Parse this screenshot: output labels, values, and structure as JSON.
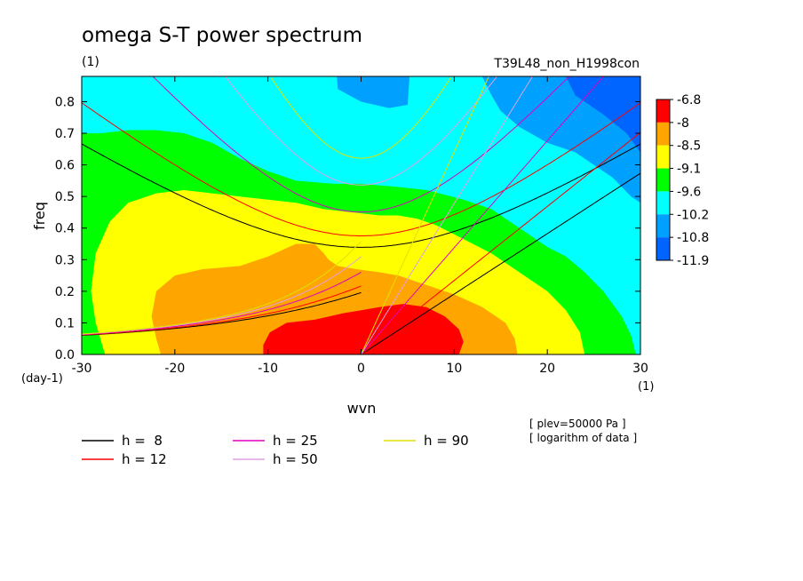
{
  "chart_data": {
    "type": "heatmap",
    "title": "omega S-T power spectrum",
    "title_unit": "(1)",
    "run_name": "T39L48_non_H1998con",
    "xlabel": "wvn",
    "ylabel": "freq",
    "x_unit": "(1)",
    "y_unit": "(day-1)",
    "xlim": [
      -30,
      30
    ],
    "ylim": [
      0,
      0.88
    ],
    "x_ticks": [
      -30,
      -20,
      -10,
      0,
      10,
      20,
      30
    ],
    "x_tick_labels": [
      "-30",
      "-20",
      "-10",
      "0",
      "10",
      "20",
      "30"
    ],
    "y_ticks": [
      0.0,
      0.1,
      0.2,
      0.3,
      0.4,
      0.5,
      0.6,
      0.7,
      0.8
    ],
    "y_tick_labels": [
      "0.0",
      "0.1",
      "0.2",
      "0.3",
      "0.4",
      "0.5",
      "0.6",
      "0.7",
      "0.8"
    ],
    "colorbar": {
      "labels": [
        "-6.8",
        "-8",
        "-8.5",
        "-9.1",
        "-9.6",
        "-10.2",
        "-10.8",
        "-11.9"
      ],
      "colors": [
        "#ff0000",
        "#ffa500",
        "#ffff00",
        "#00ff00",
        "#00ffff",
        "#00a0ff",
        "#0064ff"
      ]
    },
    "levels_note": "logarithm of data",
    "field": {
      "colors": [
        "#ff0000",
        "#ffa500",
        "#ffff00",
        "#00ff00",
        "#00ffff",
        "#00a0ff",
        "#0064ff"
      ],
      "regions": [
        {
          "color": "#00ffff",
          "points": [
            [
              -30,
              0
            ],
            [
              30,
              0
            ],
            [
              30,
              0.88
            ],
            [
              -30,
              0.88
            ]
          ]
        },
        {
          "color": "#00a0ff",
          "points": [
            [
              -2.6,
              0.88
            ],
            [
              -2.5,
              0.84
            ],
            [
              0,
              0.8
            ],
            [
              3,
              0.78
            ],
            [
              5,
              0.79
            ],
            [
              5.2,
              0.88
            ]
          ]
        },
        {
          "color": "#00a0ff",
          "points": [
            [
              13,
              0.88
            ],
            [
              14,
              0.82
            ],
            [
              15,
              0.77
            ],
            [
              17,
              0.72
            ],
            [
              20,
              0.67
            ],
            [
              23,
              0.64
            ],
            [
              25,
              0.6
            ],
            [
              27,
              0.56
            ],
            [
              29,
              0.5
            ],
            [
              30,
              0.48
            ],
            [
              30,
              0.88
            ]
          ]
        },
        {
          "color": "#0064ff",
          "points": [
            [
              22,
              0.88
            ],
            [
              23,
              0.82
            ],
            [
              26,
              0.76
            ],
            [
              28.5,
              0.7
            ],
            [
              30,
              0.64
            ],
            [
              30,
              0.88
            ]
          ]
        },
        {
          "color": "#00ff00",
          "points": [
            [
              -30,
              0.0
            ],
            [
              -30,
              0.7
            ],
            [
              -28,
              0.7
            ],
            [
              -25,
              0.71
            ],
            [
              -22,
              0.71
            ],
            [
              -19,
              0.7
            ],
            [
              -16,
              0.67
            ],
            [
              -13,
              0.62
            ],
            [
              -10,
              0.58
            ],
            [
              -7,
              0.55
            ],
            [
              -3,
              0.54
            ],
            [
              0,
              0.54
            ],
            [
              4,
              0.53
            ],
            [
              7,
              0.52
            ],
            [
              11,
              0.49
            ],
            [
              14,
              0.46
            ],
            [
              16,
              0.42
            ],
            [
              18,
              0.38
            ],
            [
              20,
              0.34
            ],
            [
              22,
              0.31
            ],
            [
              24,
              0.26
            ],
            [
              26,
              0.2
            ],
            [
              28,
              0.12
            ],
            [
              29,
              0.06
            ],
            [
              29.5,
              0.0
            ]
          ]
        },
        {
          "color": "#ffff00",
          "points": [
            [
              -27.5,
              0.0
            ],
            [
              -28.5,
              0.1
            ],
            [
              -29,
              0.2
            ],
            [
              -28.5,
              0.32
            ],
            [
              -27,
              0.42
            ],
            [
              -25,
              0.48
            ],
            [
              -22,
              0.51
            ],
            [
              -19,
              0.52
            ],
            [
              -16,
              0.51
            ],
            [
              -13,
              0.5
            ],
            [
              -10,
              0.49
            ],
            [
              -7,
              0.48
            ],
            [
              -4,
              0.46
            ],
            [
              -1,
              0.45
            ],
            [
              2,
              0.44
            ],
            [
              4,
              0.44
            ],
            [
              6,
              0.43
            ],
            [
              8,
              0.41
            ],
            [
              10,
              0.38
            ],
            [
              12,
              0.35
            ],
            [
              14,
              0.32
            ],
            [
              16,
              0.28
            ],
            [
              18,
              0.24
            ],
            [
              20,
              0.2
            ],
            [
              22,
              0.14
            ],
            [
              23.5,
              0.07
            ],
            [
              24,
              0.0
            ]
          ]
        },
        {
          "color": "#ffa500",
          "points": [
            [
              -21.5,
              0.0
            ],
            [
              -22,
              0.05
            ],
            [
              -22.5,
              0.12
            ],
            [
              -22,
              0.2
            ],
            [
              -20,
              0.25
            ],
            [
              -17,
              0.27
            ],
            [
              -13,
              0.28
            ],
            [
              -10,
              0.31
            ],
            [
              -7,
              0.35
            ],
            [
              -5,
              0.35
            ],
            [
              -4,
              0.32
            ],
            [
              -3.5,
              0.3
            ],
            [
              -2.5,
              0.28
            ],
            [
              -0.5,
              0.27
            ],
            [
              2,
              0.26
            ],
            [
              4,
              0.25
            ],
            [
              7,
              0.22
            ],
            [
              10,
              0.19
            ],
            [
              13,
              0.15
            ],
            [
              15.5,
              0.1
            ],
            [
              16.5,
              0.05
            ],
            [
              16.8,
              0.0
            ]
          ]
        },
        {
          "color": "#ff0000",
          "points": [
            [
              -10.5,
              0.0
            ],
            [
              -10.5,
              0.03
            ],
            [
              -9.8,
              0.07
            ],
            [
              -8,
              0.1
            ],
            [
              -5,
              0.11
            ],
            [
              -2,
              0.13
            ],
            [
              0,
              0.14
            ],
            [
              2,
              0.15
            ],
            [
              4.5,
              0.16
            ],
            [
              7,
              0.15
            ],
            [
              9,
              0.12
            ],
            [
              10.5,
              0.08
            ],
            [
              11,
              0.04
            ],
            [
              10.5,
              0.0
            ]
          ]
        }
      ]
    },
    "series": [
      {
        "name": "h =  8",
        "h": 8,
        "color": "#000000"
      },
      {
        "name": "h = 12",
        "h": 12,
        "color": "#ff0000"
      },
      {
        "name": "h = 25",
        "h": 25,
        "color": "#e000c0"
      },
      {
        "name": "h = 50",
        "h": 50,
        "color": "#e0a0e0"
      },
      {
        "name": "h = 90",
        "h": 90,
        "color": "#e0e000"
      }
    ],
    "annotations": [
      "[ plev=50000 Pa ]",
      "[ logarithm of data ]"
    ]
  }
}
